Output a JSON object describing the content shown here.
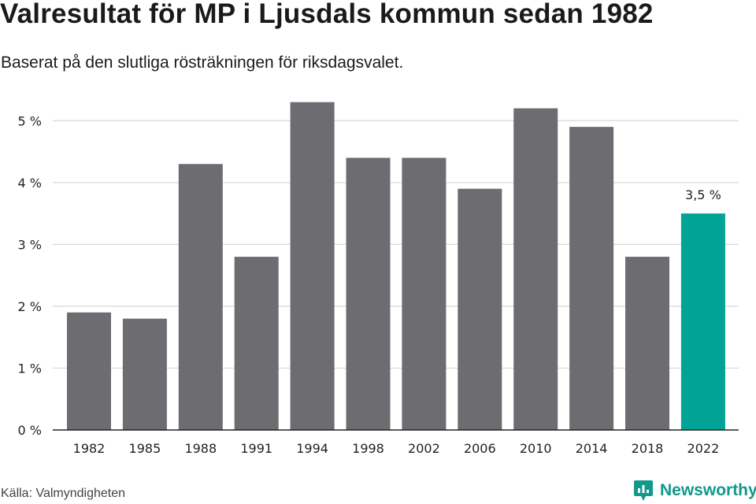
{
  "header": {
    "title": "Valresultat för MP i Ljusdals kommun sedan 1982",
    "subtitle": "Baserat på den slutliga rösträkningen för riksdagsvalet."
  },
  "chart_data": {
    "type": "bar",
    "categories": [
      "1982",
      "1985",
      "1988",
      "1991",
      "1994",
      "1998",
      "2002",
      "2006",
      "2010",
      "2014",
      "2018",
      "2022"
    ],
    "values": [
      1.9,
      1.8,
      4.3,
      2.8,
      5.3,
      4.4,
      4.4,
      3.9,
      5.2,
      4.9,
      2.8,
      3.5
    ],
    "ylim": [
      0,
      5.5
    ],
    "yticks": [
      {
        "value": 0,
        "label": "0 %"
      },
      {
        "value": 1,
        "label": "1 %"
      },
      {
        "value": 2,
        "label": "2 %"
      },
      {
        "value": 3,
        "label": "3 %"
      },
      {
        "value": 4,
        "label": "4 %"
      },
      {
        "value": 5,
        "label": "5 %"
      }
    ],
    "grid": true,
    "highlight_index": 11,
    "data_labels": [
      {
        "index": 11,
        "text": "3,5 %"
      }
    ],
    "colors": {
      "bar": "#6d6c71",
      "highlight": "#00a396",
      "grid": "#d9d9d9",
      "axis": "#222222"
    }
  },
  "footer": {
    "source": "Källa: Valmyndigheten",
    "brand": "Newsworthy",
    "brand_color": "#12988c",
    "brand_icon": "newsworthy-logo-icon"
  }
}
